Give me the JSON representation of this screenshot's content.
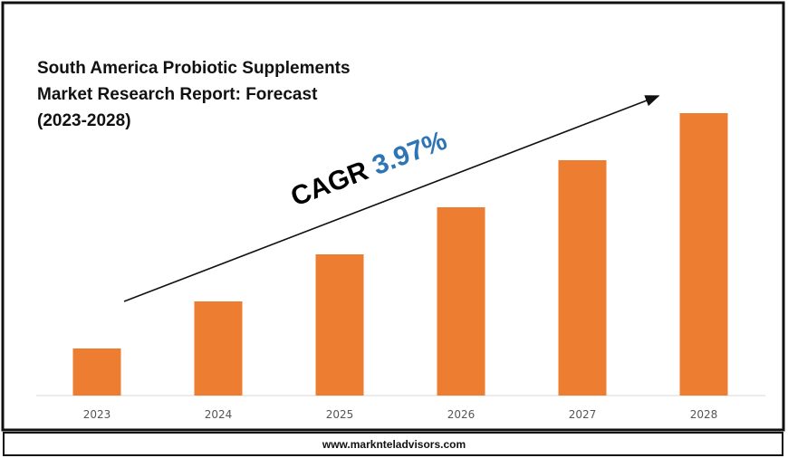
{
  "chart_data": {
    "type": "bar",
    "title_lines": [
      "South America Probiotic Supplements",
      "Market Research Report: Forecast",
      "(2023-2028)"
    ],
    "categories": [
      "2023",
      "2024",
      "2025",
      "2026",
      "2027",
      "2028"
    ],
    "values": [
      1,
      2,
      3,
      4,
      5,
      6
    ],
    "value_note_unit": "relative",
    "bar_color": "#ED7D31",
    "annotation": {
      "label": "CAGR",
      "value": "3.97%",
      "label_color": "#000000",
      "value_color": "#2E75B6"
    },
    "grid": false,
    "legend": "none",
    "xlabel": "",
    "ylabel": ""
  },
  "footer": {
    "url": "www.marknteladvisors.com"
  }
}
